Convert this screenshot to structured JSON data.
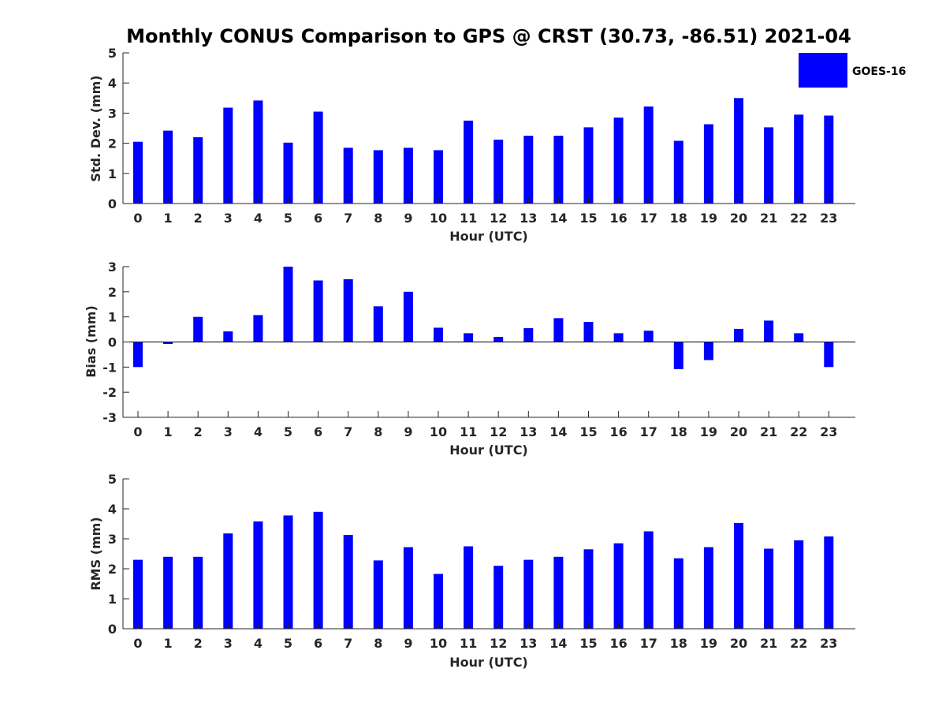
{
  "chart_data": {
    "title": "Monthly CONUS Comparison to GPS @ CRST (30.73, -86.51) 2021-04",
    "legend": {
      "label": "GOES-16",
      "color": "#0000ff",
      "position": "top-right"
    },
    "bar_color": "#0000ff",
    "categories": [
      "0",
      "1",
      "2",
      "3",
      "4",
      "5",
      "6",
      "7",
      "8",
      "9",
      "10",
      "11",
      "12",
      "13",
      "14",
      "15",
      "16",
      "17",
      "18",
      "19",
      "20",
      "21",
      "22",
      "23"
    ],
    "panels": [
      {
        "type": "bar",
        "xlabel": "Hour (UTC)",
        "ylabel": "Std. Dev. (mm)",
        "ylim": [
          0,
          5
        ],
        "yticks": [
          0,
          1,
          2,
          3,
          4,
          5
        ],
        "grid": false,
        "values": [
          2.05,
          2.42,
          2.2,
          3.18,
          3.42,
          2.02,
          3.05,
          1.85,
          1.77,
          1.85,
          1.77,
          2.75,
          2.12,
          2.25,
          2.25,
          2.53,
          2.85,
          3.22,
          2.08,
          2.63,
          3.5,
          2.53,
          2.95,
          2.92
        ]
      },
      {
        "type": "bar",
        "xlabel": "Hour (UTC)",
        "ylabel": "Bias (mm)",
        "ylim": [
          -3,
          3
        ],
        "yticks": [
          -3,
          -2,
          -1,
          0,
          1,
          2,
          3
        ],
        "grid": false,
        "values": [
          -1.0,
          -0.08,
          1.0,
          0.42,
          1.07,
          3.0,
          2.45,
          2.5,
          1.42,
          2.0,
          0.57,
          0.35,
          0.2,
          0.55,
          0.95,
          0.8,
          0.35,
          0.45,
          -1.08,
          -0.72,
          0.52,
          0.85,
          0.35,
          -1.0
        ]
      },
      {
        "type": "bar",
        "xlabel": "Hour (UTC)",
        "ylabel": "RMS (mm)",
        "ylim": [
          0,
          5
        ],
        "yticks": [
          0,
          1,
          2,
          3,
          4,
          5
        ],
        "grid": false,
        "values": [
          2.3,
          2.4,
          2.4,
          3.18,
          3.58,
          3.78,
          3.9,
          3.13,
          2.28,
          2.72,
          1.83,
          2.75,
          2.1,
          2.3,
          2.4,
          2.65,
          2.85,
          3.25,
          2.35,
          2.72,
          3.53,
          2.67,
          2.95,
          3.08
        ]
      }
    ]
  }
}
